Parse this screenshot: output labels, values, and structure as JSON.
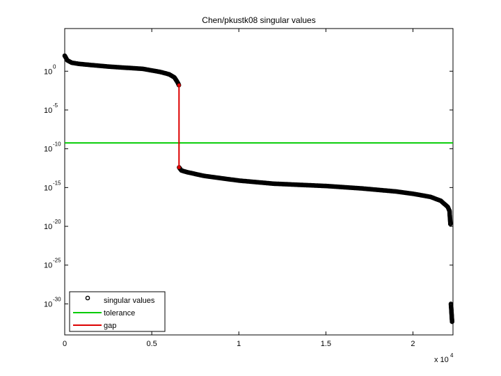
{
  "chart_data": {
    "type": "scatter",
    "title": "Chen/pkustk08 singular values",
    "xlabel": "",
    "ylabel": "",
    "y_scale": "log10",
    "xlim": [
      0,
      22300
    ],
    "ylim_exponent": [
      -34,
      5.5
    ],
    "x_multiplier_label": "x 10",
    "x_multiplier_exponent": "4",
    "x_ticks": [
      {
        "value": 0,
        "label": "0"
      },
      {
        "value": 5000,
        "label": "0.5"
      },
      {
        "value": 10000,
        "label": "1"
      },
      {
        "value": 15000,
        "label": "1.5"
      },
      {
        "value": 20000,
        "label": "2"
      }
    ],
    "y_ticks": [
      {
        "exp": 0,
        "base": "10",
        "sup": "0"
      },
      {
        "exp": -5,
        "base": "10",
        "sup": "-5"
      },
      {
        "exp": -10,
        "base": "10",
        "sup": "-10"
      },
      {
        "exp": -15,
        "base": "10",
        "sup": "-15"
      },
      {
        "exp": -20,
        "base": "10",
        "sup": "-20"
      },
      {
        "exp": -25,
        "base": "10",
        "sup": "-25"
      },
      {
        "exp": -30,
        "base": "10",
        "sup": "-30"
      }
    ],
    "series": [
      {
        "name": "singular values",
        "color": "#000000",
        "marker": "circle",
        "points": [
          [
            0,
            2.0
          ],
          [
            150,
            1.4
          ],
          [
            400,
            1.1
          ],
          [
            800,
            0.95
          ],
          [
            1500,
            0.8
          ],
          [
            2500,
            0.6
          ],
          [
            3500,
            0.45
          ],
          [
            4500,
            0.3
          ],
          [
            5500,
            -0.1
          ],
          [
            6000,
            -0.4
          ],
          [
            6300,
            -0.8
          ],
          [
            6500,
            -1.5
          ],
          [
            6560,
            -1.8
          ],
          [
            6570,
            -12.4
          ],
          [
            6700,
            -12.8
          ],
          [
            7000,
            -13.0
          ],
          [
            8000,
            -13.5
          ],
          [
            9000,
            -13.8
          ],
          [
            10000,
            -14.1
          ],
          [
            11000,
            -14.3
          ],
          [
            12000,
            -14.5
          ],
          [
            13000,
            -14.6
          ],
          [
            14000,
            -14.7
          ],
          [
            15000,
            -14.8
          ],
          [
            16000,
            -14.95
          ],
          [
            17000,
            -15.1
          ],
          [
            18000,
            -15.3
          ],
          [
            19000,
            -15.5
          ],
          [
            20000,
            -15.8
          ],
          [
            21000,
            -16.2
          ],
          [
            21600,
            -16.7
          ],
          [
            22000,
            -17.5
          ],
          [
            22100,
            -18.0
          ],
          [
            22120,
            -18.7
          ],
          [
            22150,
            -19.7
          ],
          [
            22180,
            -30.0
          ],
          [
            22200,
            -30.6
          ],
          [
            22220,
            -31.3
          ],
          [
            22240,
            -32.0
          ],
          [
            22250,
            -32.3
          ]
        ]
      },
      {
        "name": "tolerance",
        "color": "#00cc00",
        "y_exp": -9.25
      },
      {
        "name": "gap",
        "color": "#dd0000",
        "x": 6565,
        "y_exp_top": -1.8,
        "y_exp_bottom": -12.4
      }
    ],
    "legend": {
      "position": "bottom-left",
      "entries": [
        "singular values",
        "tolerance",
        "gap"
      ]
    }
  }
}
